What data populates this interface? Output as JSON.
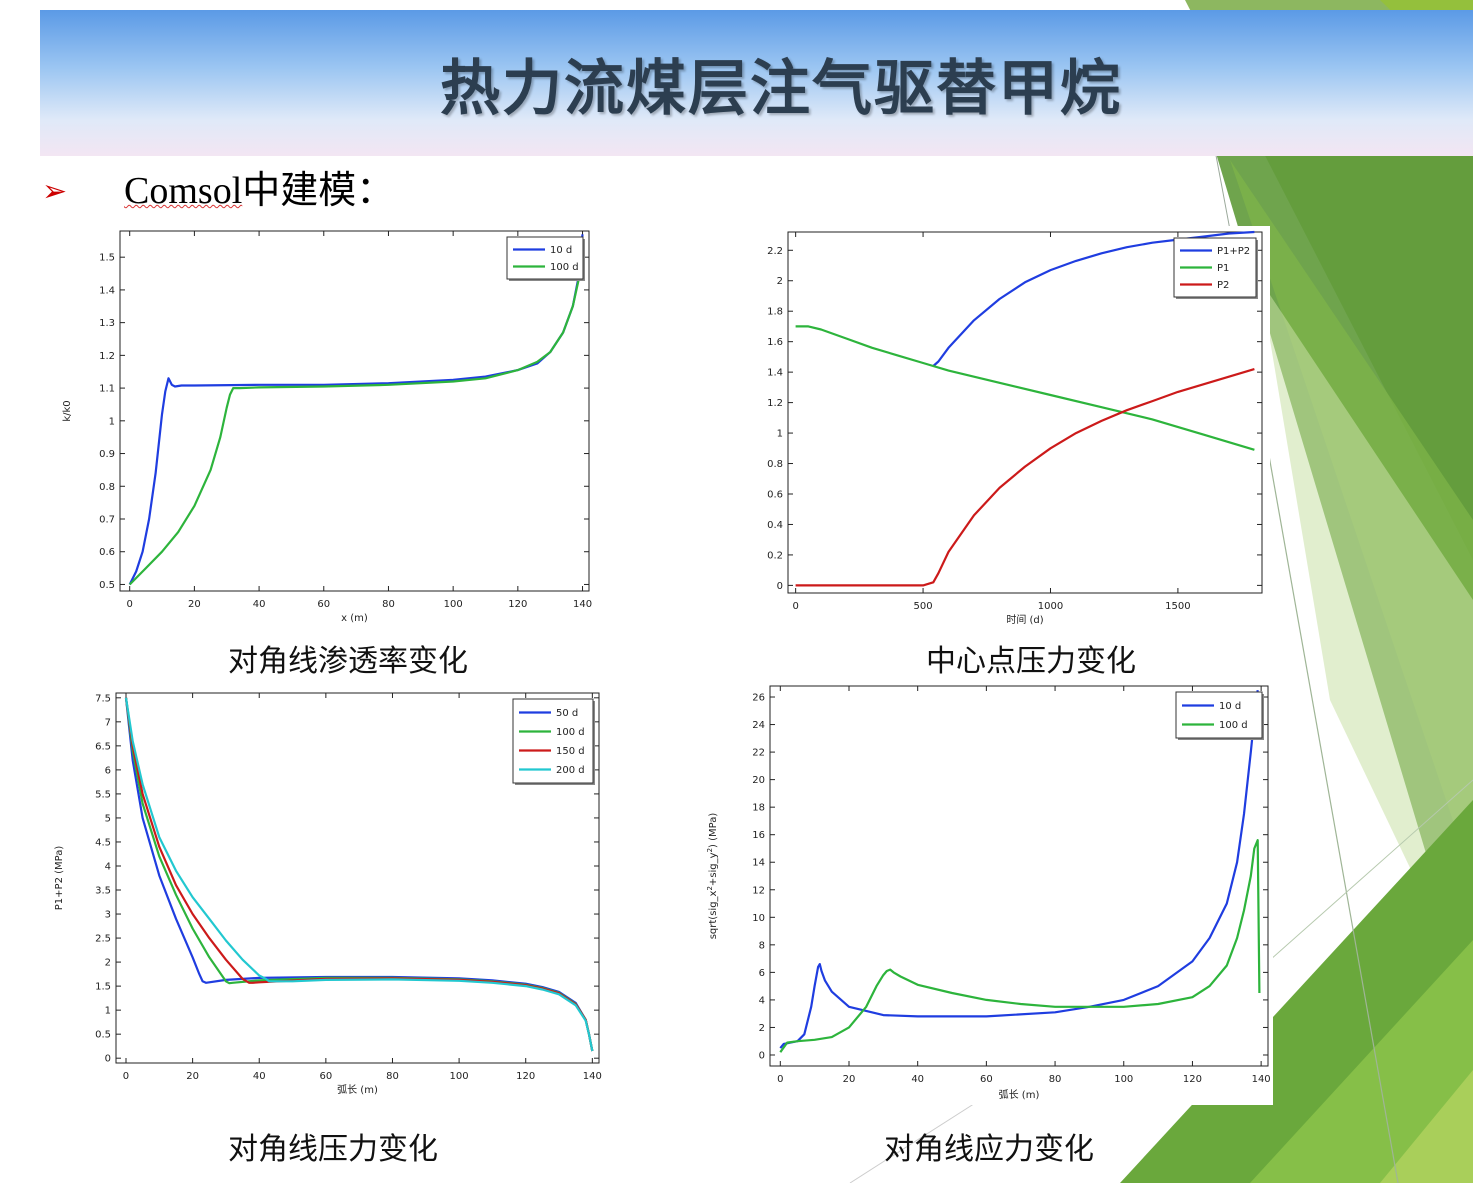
{
  "slide": {
    "title": "热力流煤层注气驱替甲烷",
    "bullet_marker": "➢",
    "bullet_word": "Comsol",
    "bullet_rest": "中建模："
  },
  "captions": [
    "对角线渗透率变化",
    "中心点压力变化",
    "对角线压力变化",
    "对角线应力变化"
  ],
  "chart_data": [
    {
      "type": "line",
      "title": "",
      "xlabel": "x (m)",
      "ylabel": "k/k0",
      "xlim": [
        -3,
        142
      ],
      "ylim": [
        0.48,
        1.58
      ],
      "xticks": [
        0,
        20,
        40,
        60,
        80,
        100,
        120,
        140
      ],
      "yticks": [
        0.5,
        0.6,
        0.7,
        0.8,
        0.9,
        1,
        1.1,
        1.2,
        1.3,
        1.4,
        1.5
      ],
      "legend": "top-right",
      "series": [
        {
          "name": "10 d",
          "color": "#1f3de0",
          "x": [
            0,
            2,
            4,
            6,
            8,
            10,
            11,
            12,
            13,
            14,
            16,
            20,
            40,
            60,
            80,
            100,
            110,
            120,
            126,
            130,
            134,
            137,
            139,
            140
          ],
          "y": [
            0.5,
            0.54,
            0.6,
            0.7,
            0.84,
            1.02,
            1.09,
            1.13,
            1.11,
            1.105,
            1.108,
            1.108,
            1.11,
            1.11,
            1.115,
            1.125,
            1.135,
            1.155,
            1.175,
            1.21,
            1.27,
            1.35,
            1.45,
            1.57
          ]
        },
        {
          "name": "100 d",
          "color": "#2db43c",
          "x": [
            0,
            5,
            10,
            15,
            20,
            25,
            28,
            30,
            31,
            32,
            34,
            40,
            60,
            80,
            100,
            110,
            120,
            126,
            130,
            134,
            137,
            139,
            140
          ],
          "y": [
            0.5,
            0.55,
            0.6,
            0.66,
            0.74,
            0.85,
            0.95,
            1.04,
            1.08,
            1.1,
            1.1,
            1.102,
            1.105,
            1.11,
            1.12,
            1.13,
            1.155,
            1.18,
            1.21,
            1.27,
            1.35,
            1.44,
            1.55
          ]
        }
      ]
    },
    {
      "type": "line",
      "title": "",
      "xlabel": "时间 (d)",
      "ylabel": "",
      "xlim": [
        -30,
        1830
      ],
      "ylim": [
        -0.05,
        2.32
      ],
      "xticks": [
        0,
        500,
        1000,
        1500
      ],
      "yticks": [
        0,
        0.2,
        0.4,
        0.6,
        0.8,
        1,
        1.2,
        1.4,
        1.6,
        1.8,
        2,
        2.2
      ],
      "legend": "top-right",
      "series": [
        {
          "name": "P1+P2",
          "color": "#1f3de0",
          "x": [
            540,
            560,
            600,
            700,
            800,
            900,
            1000,
            1100,
            1200,
            1300,
            1400,
            1500,
            1600,
            1700,
            1800
          ],
          "y": [
            1.44,
            1.47,
            1.56,
            1.74,
            1.88,
            1.99,
            2.07,
            2.13,
            2.18,
            2.22,
            2.25,
            2.27,
            2.29,
            2.31,
            2.32
          ]
        },
        {
          "name": "P1",
          "color": "#2db43c",
          "x": [
            0,
            50,
            100,
            200,
            300,
            400,
            500,
            600,
            800,
            1000,
            1200,
            1400,
            1600,
            1800
          ],
          "y": [
            1.7,
            1.7,
            1.68,
            1.62,
            1.56,
            1.51,
            1.46,
            1.41,
            1.33,
            1.25,
            1.17,
            1.09,
            0.99,
            0.89
          ]
        },
        {
          "name": "P2",
          "color": "#cc1a1a",
          "x": [
            0,
            500,
            540,
            560,
            600,
            700,
            800,
            900,
            1000,
            1100,
            1200,
            1300,
            1400,
            1500,
            1600,
            1700,
            1800
          ],
          "y": [
            0,
            0,
            0.02,
            0.08,
            0.22,
            0.46,
            0.64,
            0.78,
            0.9,
            1.0,
            1.08,
            1.15,
            1.21,
            1.27,
            1.32,
            1.37,
            1.42
          ]
        }
      ]
    },
    {
      "type": "line",
      "title": "",
      "xlabel": "弧长 (m)",
      "ylabel": "P1+P2 (MPa)",
      "xlim": [
        -3,
        142
      ],
      "ylim": [
        -0.1,
        7.6
      ],
      "xticks": [
        0,
        20,
        40,
        60,
        80,
        100,
        120,
        140
      ],
      "yticks": [
        0,
        0.5,
        1,
        1.5,
        2,
        2.5,
        3,
        3.5,
        4,
        4.5,
        5,
        5.5,
        6,
        6.5,
        7,
        7.5
      ],
      "legend": "top-right",
      "series": [
        {
          "name": "50 d",
          "color": "#1f3de0",
          "x": [
            0,
            2,
            5,
            10,
            15,
            20,
            22,
            23,
            24,
            30,
            40,
            60,
            80,
            100,
            110,
            120,
            125,
            130,
            135,
            138,
            139,
            140
          ],
          "y": [
            7.5,
            6.2,
            5.0,
            3.8,
            2.9,
            2.1,
            1.75,
            1.6,
            1.57,
            1.63,
            1.67,
            1.69,
            1.69,
            1.66,
            1.62,
            1.55,
            1.48,
            1.38,
            1.15,
            0.8,
            0.5,
            0.15
          ]
        },
        {
          "name": "100 d",
          "color": "#2db43c",
          "x": [
            0,
            2,
            5,
            10,
            15,
            20,
            25,
            30,
            31,
            32,
            40,
            60,
            80,
            100,
            110,
            120,
            125,
            130,
            135,
            138,
            139,
            140
          ],
          "y": [
            7.5,
            6.4,
            5.3,
            4.2,
            3.4,
            2.7,
            2.1,
            1.6,
            1.56,
            1.57,
            1.62,
            1.67,
            1.67,
            1.64,
            1.6,
            1.53,
            1.46,
            1.36,
            1.13,
            0.8,
            0.5,
            0.15
          ]
        },
        {
          "name": "150 d",
          "color": "#cc1a1a",
          "x": [
            0,
            2,
            5,
            10,
            15,
            20,
            25,
            30,
            35,
            37,
            38,
            40,
            60,
            80,
            100,
            110,
            120,
            125,
            130,
            135,
            138,
            139,
            140
          ],
          "y": [
            7.5,
            6.5,
            5.5,
            4.4,
            3.6,
            3.0,
            2.5,
            2.05,
            1.65,
            1.57,
            1.57,
            1.58,
            1.65,
            1.66,
            1.63,
            1.59,
            1.52,
            1.45,
            1.35,
            1.12,
            0.8,
            0.5,
            0.15
          ]
        },
        {
          "name": "200 d",
          "color": "#22c8d0",
          "x": [
            0,
            2,
            5,
            10,
            15,
            20,
            25,
            30,
            35,
            40,
            42,
            43,
            50,
            60,
            80,
            100,
            110,
            120,
            125,
            130,
            135,
            138,
            139,
            140
          ],
          "y": [
            7.5,
            6.6,
            5.7,
            4.6,
            3.9,
            3.35,
            2.9,
            2.45,
            2.05,
            1.72,
            1.65,
            1.6,
            1.6,
            1.63,
            1.64,
            1.61,
            1.57,
            1.5,
            1.43,
            1.33,
            1.1,
            0.78,
            0.5,
            0.15
          ]
        }
      ]
    },
    {
      "type": "line",
      "title": "",
      "xlabel": "弧长 (m)",
      "ylabel_main": "sqrt(sig_x",
      "ylabel_sup1": "2",
      "ylabel_mid": "+sig_y",
      "ylabel_sup2": "2",
      "ylabel_end": ") (MPa)",
      "xlim": [
        -3,
        142
      ],
      "ylim": [
        -0.8,
        26.8
      ],
      "xticks": [
        0,
        20,
        40,
        60,
        80,
        100,
        120,
        140
      ],
      "yticks": [
        0,
        2,
        4,
        6,
        8,
        10,
        12,
        14,
        16,
        18,
        20,
        22,
        24,
        26
      ],
      "legend": "top-right",
      "series": [
        {
          "name": "10 d",
          "color": "#1f3de0",
          "x": [
            0,
            1,
            3,
            5,
            7,
            9,
            10,
            11,
            11.5,
            12,
            13,
            15,
            20,
            30,
            40,
            60,
            80,
            90,
            100,
            110,
            120,
            125,
            130,
            133,
            135,
            137,
            138,
            139
          ],
          "y": [
            0.5,
            0.8,
            0.9,
            1.0,
            1.5,
            3.5,
            5.0,
            6.4,
            6.6,
            6.1,
            5.4,
            4.6,
            3.5,
            2.9,
            2.8,
            2.8,
            3.1,
            3.5,
            4.0,
            5.0,
            6.8,
            8.5,
            11.0,
            14.0,
            17.5,
            22.0,
            24.5,
            26.5
          ]
        },
        {
          "name": "100 d",
          "color": "#2db43c",
          "x": [
            0,
            2,
            5,
            10,
            15,
            20,
            25,
            28,
            30,
            31,
            32,
            33,
            35,
            40,
            50,
            60,
            70,
            80,
            90,
            100,
            110,
            120,
            125,
            130,
            133,
            135,
            137,
            138,
            139,
            139.5
          ],
          "y": [
            0.2,
            0.9,
            1.0,
            1.1,
            1.3,
            2.0,
            3.5,
            5.0,
            5.8,
            6.1,
            6.2,
            6.0,
            5.7,
            5.1,
            4.5,
            4.0,
            3.7,
            3.5,
            3.5,
            3.5,
            3.7,
            4.2,
            5.0,
            6.5,
            8.5,
            10.5,
            13.0,
            15.0,
            15.6,
            4.5
          ]
        }
      ]
    }
  ]
}
